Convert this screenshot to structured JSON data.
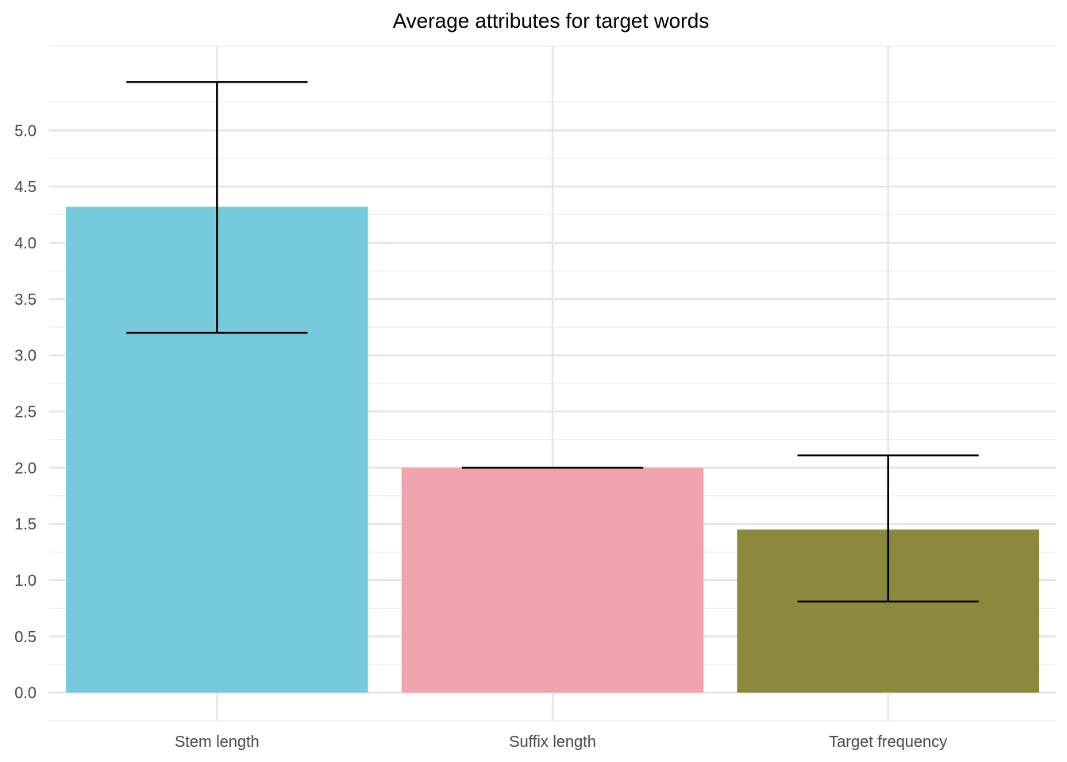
{
  "chart_data": {
    "type": "bar",
    "title": "Average attributes for target words",
    "xlabel": "",
    "ylabel": "",
    "categories": [
      "Stem length",
      "Suffix length",
      "Target frequency"
    ],
    "values": [
      4.32,
      2.0,
      1.45
    ],
    "error_low": [
      3.2,
      2.0,
      0.81
    ],
    "error_high": [
      5.43,
      2.0,
      2.11
    ],
    "colors": [
      "#76CADB",
      "#EFA4AF",
      "#8A893C"
    ],
    "ylim": [
      -0.25,
      5.75
    ],
    "y_ticks": [
      "0.0",
      "0.5",
      "1.0",
      "1.5",
      "2.0",
      "2.5",
      "3.0",
      "3.5",
      "4.0",
      "4.5",
      "5.0"
    ],
    "grid": true,
    "legend": "none"
  }
}
